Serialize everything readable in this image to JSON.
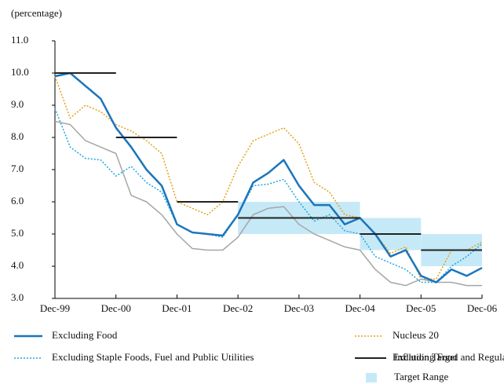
{
  "chart_data": {
    "type": "line",
    "y_label": "(percentage)",
    "x": [
      "1999-12",
      "2000-03",
      "2000-06",
      "2000-09",
      "2000-12",
      "2001-03",
      "2001-06",
      "2001-09",
      "2001-12",
      "2002-03",
      "2002-06",
      "2002-09",
      "2002-12",
      "2003-03",
      "2003-06",
      "2003-09",
      "2003-12",
      "2004-03",
      "2004-06",
      "2004-09",
      "2004-12",
      "2005-03",
      "2005-06",
      "2005-09",
      "2005-12",
      "2006-03",
      "2006-06",
      "2006-09",
      "2006-12"
    ],
    "xlim": [
      "1999-12",
      "2006-12"
    ],
    "xticks": [
      {
        "value": "1999-12",
        "label": "Dec-99"
      },
      {
        "value": "2000-12",
        "label": "Dec-00"
      },
      {
        "value": "2001-12",
        "label": "Dec-01"
      },
      {
        "value": "2002-12",
        "label": "Dec-02"
      },
      {
        "value": "2003-12",
        "label": "Dec-03"
      },
      {
        "value": "2004-12",
        "label": "Dec-04"
      },
      {
        "value": "2005-12",
        "label": "Dec-05"
      },
      {
        "value": "2006-12",
        "label": "Dec-06"
      }
    ],
    "ylim": [
      3,
      11
    ],
    "yticks": [
      {
        "value": 3,
        "label": "3.0"
      },
      {
        "value": 4,
        "label": "4.0"
      },
      {
        "value": 5,
        "label": "5.0"
      },
      {
        "value": 6,
        "label": "6.0"
      },
      {
        "value": 7,
        "label": "7.0"
      },
      {
        "value": 8,
        "label": "8.0"
      },
      {
        "value": 9,
        "label": "9.0"
      },
      {
        "value": 10,
        "label": "10.0"
      },
      {
        "value": 11,
        "label": "11.0"
      }
    ],
    "series": [
      {
        "name": "Excluding Food",
        "color": "#1a75bc",
        "style": "solid",
        "width": 2.5,
        "values": [
          9.9,
          10.0,
          9.6,
          9.2,
          8.3,
          7.7,
          7.0,
          6.5,
          5.3,
          5.05,
          5.0,
          4.95,
          5.6,
          6.6,
          6.9,
          7.3,
          6.5,
          5.9,
          5.9,
          5.3,
          5.5,
          5.0,
          4.3,
          4.5,
          3.7,
          3.5,
          3.9,
          3.7,
          3.95
        ]
      },
      {
        "name": "Nucleus 20",
        "color": "#e3a21a",
        "style": "dotted",
        "width": 1.5,
        "values": [
          9.9,
          8.6,
          9.0,
          8.8,
          8.4,
          8.2,
          7.9,
          7.5,
          6.0,
          5.8,
          5.6,
          6.0,
          7.1,
          7.9,
          8.1,
          8.3,
          7.8,
          6.6,
          6.3,
          5.6,
          5.5,
          5.0,
          4.4,
          4.6,
          3.6,
          3.6,
          4.5,
          4.5,
          4.75
        ]
      },
      {
        "name": "Excluding Staple Foods, Fuel and Public Utilities",
        "color": "#1ea7df",
        "style": "dotted",
        "width": 1.5,
        "values": [
          8.9,
          7.7,
          7.35,
          7.3,
          6.8,
          7.1,
          6.6,
          6.3,
          5.3,
          5.05,
          5.0,
          4.9,
          5.6,
          6.5,
          6.55,
          6.7,
          6.0,
          5.4,
          5.6,
          5.1,
          5.0,
          4.3,
          4.1,
          3.9,
          3.5,
          3.5,
          4.0,
          4.3,
          4.7
        ]
      },
      {
        "name": "Excluding Food and Regulated Items",
        "color": "#a6a6a6",
        "style": "solid",
        "width": 1.5,
        "values": [
          8.5,
          8.4,
          7.9,
          7.7,
          7.5,
          6.2,
          6.0,
          5.6,
          5.0,
          4.55,
          4.5,
          4.5,
          4.9,
          5.6,
          5.8,
          5.85,
          5.3,
          5.0,
          4.8,
          4.6,
          4.5,
          3.9,
          3.5,
          3.4,
          3.6,
          3.5,
          3.5,
          3.4,
          3.4
        ]
      }
    ],
    "target": {
      "name": "Inflation Target",
      "color": "#222222",
      "segments": [
        {
          "start": "1999-12",
          "end": "2000-12",
          "value": 10
        },
        {
          "start": "2000-12",
          "end": "2001-12",
          "value": 8
        },
        {
          "start": "2001-12",
          "end": "2002-12",
          "value": 6
        },
        {
          "start": "2002-12",
          "end": "2004-12",
          "value": 5.5
        },
        {
          "start": "2004-12",
          "end": "2005-12",
          "value": 5
        },
        {
          "start": "2005-12",
          "end": "2006-12",
          "value": 4.5
        }
      ]
    },
    "target_range": {
      "name": "Target Range",
      "color": "#c6e9f7",
      "segments": [
        {
          "start": "2002-12",
          "end": "2004-12",
          "low": 5,
          "high": 6
        },
        {
          "start": "2004-12",
          "end": "2005-12",
          "low": 4.5,
          "high": 5.5
        },
        {
          "start": "2005-12",
          "end": "2006-12",
          "low": 4,
          "high": 5
        }
      ]
    }
  }
}
